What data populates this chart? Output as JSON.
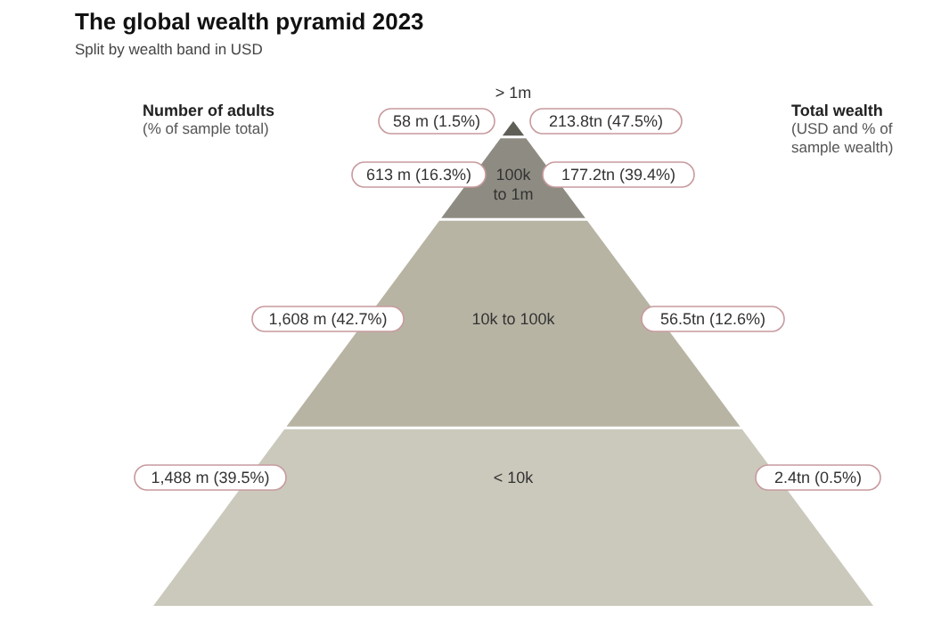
{
  "chart_data": {
    "type": "other",
    "title": "The global wealth pyramid 2023",
    "subtitle": "Split by wealth band in USD",
    "categories": [
      "> 1m",
      "100k to 1m",
      "10k to 100k",
      "< 10k"
    ],
    "colors": [
      "#5f5f58",
      "#8e8c82",
      "#b8b4a4",
      "#cbc9bc"
    ],
    "series": [
      {
        "values": [
          58,
          613,
          1608,
          1488
        ],
        "value_labels": [
          "58 m (1.5%)",
          "613 m (16.3%)",
          "1,608 m (42.7%)",
          "1,488 m (39.5%)"
        ]
      },
      {
        "values": [
          213.8,
          177.2,
          56.5,
          2.4
        ],
        "value_labels": [
          "213.8tn (47.5%)",
          "177.2tn (39.4%)",
          "56.5tn (12.6%)",
          "2.4tn (0.5%)"
        ]
      }
    ],
    "annotations": [
      "Number of adults",
      "(% of sample total)",
      "Total wealth",
      "(USD and % of\nsample wealth)"
    ]
  }
}
